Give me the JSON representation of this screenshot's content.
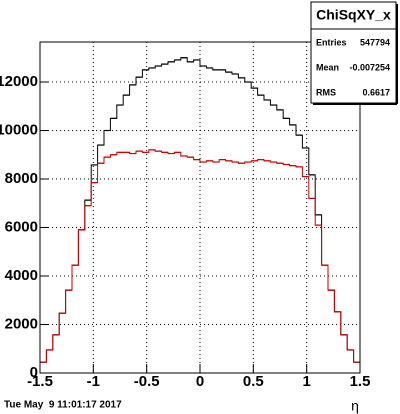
{
  "chart_data": {
    "type": "histogram",
    "title": "ChiSqXY_x",
    "stats": [
      {
        "label": "Entries",
        "value": 547794
      },
      {
        "label": "Mean",
        "value": -0.007254
      },
      {
        "label": "RMS",
        "value": 0.6617
      }
    ],
    "xlabel": "η",
    "footer": "Tue May  9 11:01:17 2017",
    "bins": [
      -1.5,
      -1.44,
      -1.38,
      -1.32,
      -1.26,
      -1.2,
      -1.14,
      -1.08,
      -1.02,
      -0.96,
      -0.9,
      -0.84,
      -0.78,
      -0.72,
      -0.66,
      -0.6,
      -0.54,
      -0.48,
      -0.42,
      -0.36,
      -0.3,
      -0.24,
      -0.18,
      -0.12,
      -0.06,
      0,
      0.06,
      0.12,
      0.18,
      0.24,
      0.3,
      0.36,
      0.42,
      0.48,
      0.54,
      0.6,
      0.66,
      0.72,
      0.78,
      0.84,
      0.9,
      0.96,
      1.02,
      1.08,
      1.14,
      1.2,
      1.26,
      1.32,
      1.38,
      1.44,
      1.5
    ],
    "series": [
      {
        "color": "#000000",
        "values": [
          450,
          950,
          1570,
          2470,
          3420,
          4450,
          5900,
          7130,
          8580,
          9400,
          10000,
          10500,
          11050,
          11460,
          11880,
          12200,
          12500,
          12580,
          12660,
          12740,
          12830,
          12910,
          13000,
          12830,
          12910,
          12660,
          12580,
          12500,
          12500,
          12410,
          12330,
          12170,
          12000,
          11750,
          11460,
          11260,
          11050,
          10850,
          10500,
          10230,
          9810,
          9280,
          8170,
          6520,
          4450,
          3420,
          2520,
          1570,
          950,
          450
        ]
      },
      {
        "color": "#cc0000",
        "values": [
          450,
          950,
          1570,
          2470,
          3420,
          4450,
          5900,
          6900,
          7850,
          8650,
          8900,
          9000,
          9100,
          9100,
          9050,
          9150,
          9100,
          9200,
          9150,
          9100,
          9050,
          9100,
          8950,
          8900,
          8800,
          8700,
          8750,
          8700,
          8800,
          8750,
          8700,
          8650,
          8700,
          8750,
          8800,
          8750,
          8700,
          8650,
          8600,
          8550,
          8500,
          8100,
          7200,
          6100,
          4450,
          3420,
          2520,
          1570,
          950,
          450
        ]
      }
    ],
    "xlim": [
      -1.5,
      1.5
    ],
    "xticks": [
      -1.5,
      -1,
      -0.5,
      0,
      0.5,
      1,
      1.5
    ],
    "ylim": [
      0,
      13650
    ],
    "yticks": [
      0,
      2000,
      4000,
      6000,
      8000,
      10000,
      12000
    ],
    "grid": true
  }
}
